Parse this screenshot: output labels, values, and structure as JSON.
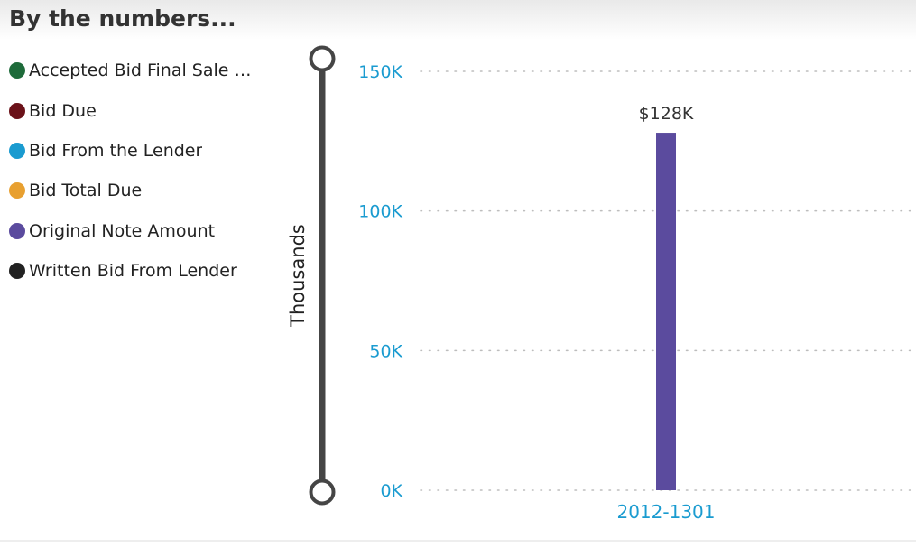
{
  "page": {
    "title": "By the numbers..."
  },
  "legend": {
    "items": [
      {
        "label": "Accepted Bid Final Sale A...",
        "color": "#1e6b3a"
      },
      {
        "label": "Bid Due",
        "color": "#6b1219"
      },
      {
        "label": "Bid From the Lender",
        "color": "#1a9bd0"
      },
      {
        "label": "Bid Total Due",
        "color": "#e8a030"
      },
      {
        "label": "Original Note Amount",
        "color": "#5b4b9e"
      },
      {
        "label": "Written Bid From Lender",
        "color": "#222222"
      }
    ]
  },
  "chart_data": {
    "type": "bar",
    "categories": [
      "2012-1301"
    ],
    "series": [
      {
        "name": "Original Note Amount",
        "values": [
          128000
        ],
        "color": "#5b4b9e",
        "data_labels": [
          "$128K"
        ]
      }
    ],
    "ylabel": "Thousands",
    "ylim": [
      0,
      150000
    ],
    "yticks": [
      {
        "value": 0,
        "label": "0K"
      },
      {
        "value": 50000,
        "label": "50K"
      },
      {
        "value": 100000,
        "label": "100K"
      },
      {
        "value": 150000,
        "label": "150K"
      }
    ],
    "grid": true,
    "axis_color": "#1a9bd0",
    "legend_position": "left"
  }
}
